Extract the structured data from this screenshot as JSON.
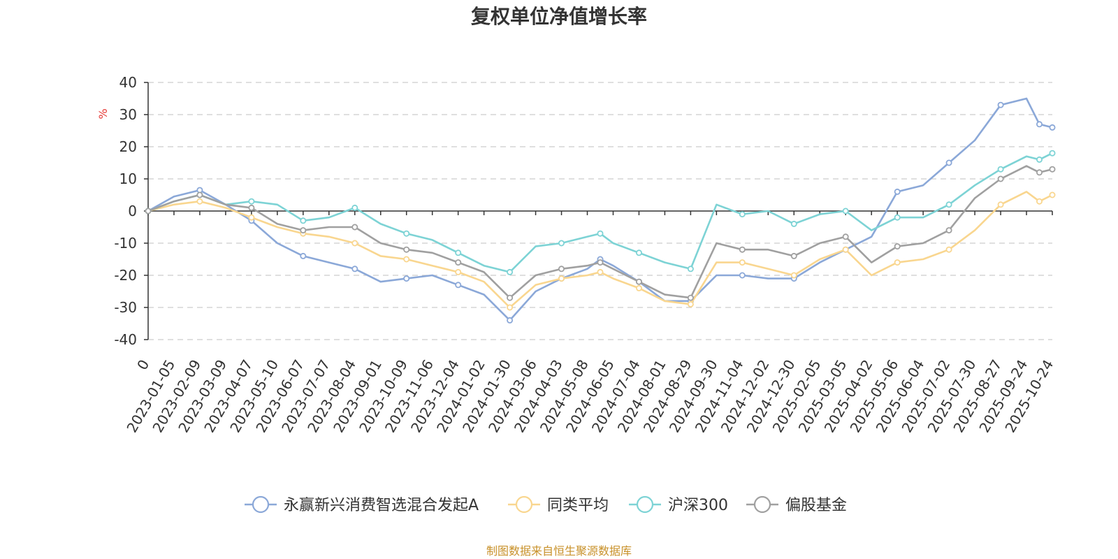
{
  "chart_data": {
    "type": "line",
    "title": "复权单位净值增长率",
    "ylabel": "%",
    "ylim": [
      -40,
      40
    ],
    "yticks": [
      -40,
      -30,
      -20,
      -10,
      0,
      10,
      20,
      30,
      40
    ],
    "xlabel": "",
    "xticks": [
      "0",
      "2023-01-05",
      "2023-02-09",
      "2023-03-09",
      "2023-04-07",
      "2023-05-10",
      "2023-06-07",
      "2023-07-07",
      "2023-08-04",
      "2023-09-01",
      "2023-10-09",
      "2023-11-06",
      "2023-12-04",
      "2024-01-02",
      "2024-01-30",
      "2024-03-06",
      "2024-04-03",
      "2024-05-08",
      "2024-06-05",
      "2024-07-04",
      "2024-08-01",
      "2024-08-29",
      "2024-09-30",
      "2024-11-04",
      "2024-12-02",
      "2024-12-30",
      "2025-02-05",
      "2025-03-05",
      "2025-04-02",
      "2025-05-06",
      "2025-06-04",
      "2025-07-02",
      "2025-07-30",
      "2025-08-27",
      "2025-09-24",
      "2025-10-24"
    ],
    "x": [
      0,
      2,
      4,
      6,
      8,
      10,
      12,
      14,
      16,
      18,
      20,
      22,
      24,
      26,
      28,
      30,
      32,
      34,
      35,
      36,
      38,
      40,
      42,
      44,
      46,
      48,
      50,
      52,
      54,
      56,
      58,
      60,
      62,
      64,
      66,
      68,
      69,
      70
    ],
    "series": [
      {
        "name": "永赢新兴消费智选混合发起A",
        "color": "#8ba8d8",
        "values": [
          0,
          4.5,
          6.5,
          2.0,
          -3.0,
          -10.0,
          -14.0,
          -16.0,
          -18.0,
          -22.0,
          -21.0,
          -20.0,
          -23.0,
          -26.0,
          -34.0,
          -25.0,
          -21.0,
          -18.0,
          -15.0,
          -17.0,
          -22.0,
          -28.0,
          -28.0,
          -20.0,
          -20.0,
          -21.0,
          -21.0,
          -16.0,
          -12.0,
          -8.0,
          6.0,
          8.0,
          15.0,
          22.0,
          33.0,
          35.0,
          27.0,
          26.0
        ]
      },
      {
        "name": "同类平均",
        "color": "#f9d68f",
        "values": [
          0,
          2.0,
          3.0,
          1.0,
          -2.0,
          -5.0,
          -7.0,
          -8.0,
          -10.0,
          -14.0,
          -15.0,
          -17.0,
          -19.0,
          -22.0,
          -30.0,
          -23.0,
          -21.0,
          -20.0,
          -19.0,
          -21.0,
          -24.0,
          -28.0,
          -29.0,
          -16.0,
          -16.0,
          -18.0,
          -20.0,
          -15.0,
          -12.0,
          -20.0,
          -16.0,
          -15.0,
          -12.0,
          -6.0,
          2.0,
          6.0,
          3.0,
          5.0
        ]
      },
      {
        "name": "沪深300",
        "color": "#7dd3d5",
        "values": [
          0,
          3.0,
          5.0,
          2.0,
          3.0,
          2.0,
          -3.0,
          -2.0,
          1.0,
          -4.0,
          -7.0,
          -9.0,
          -13.0,
          -17.0,
          -19.0,
          -11.0,
          -10.0,
          -8.0,
          -7.0,
          -10.0,
          -13.0,
          -16.0,
          -18.0,
          2.0,
          -1.0,
          0.0,
          -4.0,
          -1.0,
          0.0,
          -6.0,
          -2.0,
          -2.0,
          2.0,
          8.0,
          13.0,
          17.0,
          16.0,
          18.0
        ]
      },
      {
        "name": "偏股基金",
        "color": "#a0a0a0",
        "values": [
          0,
          3.0,
          5.0,
          2.0,
          1.0,
          -4.0,
          -6.0,
          -5.0,
          -5.0,
          -10.0,
          -12.0,
          -13.0,
          -16.0,
          -19.0,
          -27.0,
          -20.0,
          -18.0,
          -17.0,
          -16.0,
          -18.0,
          -22.0,
          -26.0,
          -27.0,
          -10.0,
          -12.0,
          -12.0,
          -14.0,
          -10.0,
          -8.0,
          -16.0,
          -11.0,
          -10.0,
          -6.0,
          4.0,
          10.0,
          14.0,
          12.0,
          13.0
        ]
      }
    ],
    "legend_position": "bottom"
  },
  "footer": {
    "source": "制图数据来自恒生聚源数据库"
  }
}
